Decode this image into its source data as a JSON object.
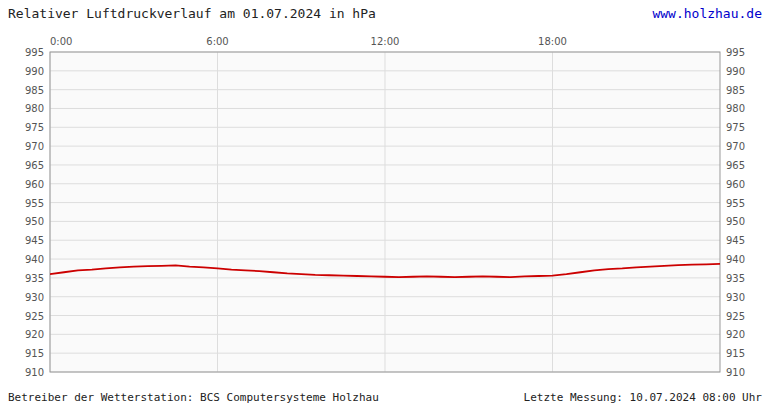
{
  "chart_data": {
    "type": "line",
    "title": "Relativer Luftdruckverlauf am 01.07.2024 in hPa",
    "annotations": [
      {
        "text": "www.holzhau.de",
        "color": "#0000cc"
      },
      {
        "text": "Betreiber der Wetterstation: BCS Computersysteme Holzhau"
      },
      {
        "text": "Letzte Messung: 10.07.2024 08:00 Uhr"
      }
    ],
    "x": [
      0,
      0.5,
      1,
      1.5,
      2,
      2.5,
      3,
      3.5,
      4,
      4.5,
      5,
      5.5,
      6,
      6.5,
      7,
      7.5,
      8,
      8.5,
      9,
      9.5,
      10,
      10.5,
      11,
      11.5,
      12,
      12.5,
      13,
      13.5,
      14,
      14.5,
      15,
      15.5,
      16,
      16.5,
      17,
      17.5,
      18,
      18.5,
      19,
      19.5,
      20,
      20.5,
      21,
      21.5,
      22,
      22.5,
      23,
      23.5,
      24
    ],
    "values": [
      936,
      936.5,
      937,
      937.2,
      937.5,
      937.8,
      938,
      938.1,
      938.2,
      938.3,
      938.0,
      937.8,
      937.5,
      937.2,
      937.0,
      936.8,
      936.5,
      936.2,
      936.0,
      935.8,
      935.7,
      935.6,
      935.5,
      935.4,
      935.3,
      935.2,
      935.3,
      935.4,
      935.3,
      935.2,
      935.3,
      935.4,
      935.3,
      935.2,
      935.4,
      935.5,
      935.6,
      936.0,
      936.5,
      937.0,
      937.3,
      937.5,
      937.8,
      938.0,
      938.2,
      938.4,
      938.5,
      938.6,
      938.7
    ],
    "color": "#cc0000",
    "xlim": [
      0,
      24
    ],
    "xticks": [
      {
        "value": 0,
        "label": "0:00"
      },
      {
        "value": 6,
        "label": "6:00"
      },
      {
        "value": 12,
        "label": "12:00"
      },
      {
        "value": 18,
        "label": "18:00"
      }
    ],
    "ylim": [
      910,
      995
    ],
    "yticks": [
      910,
      915,
      920,
      925,
      930,
      935,
      940,
      945,
      950,
      955,
      960,
      965,
      970,
      975,
      980,
      985,
      990,
      995
    ],
    "grid": true
  }
}
